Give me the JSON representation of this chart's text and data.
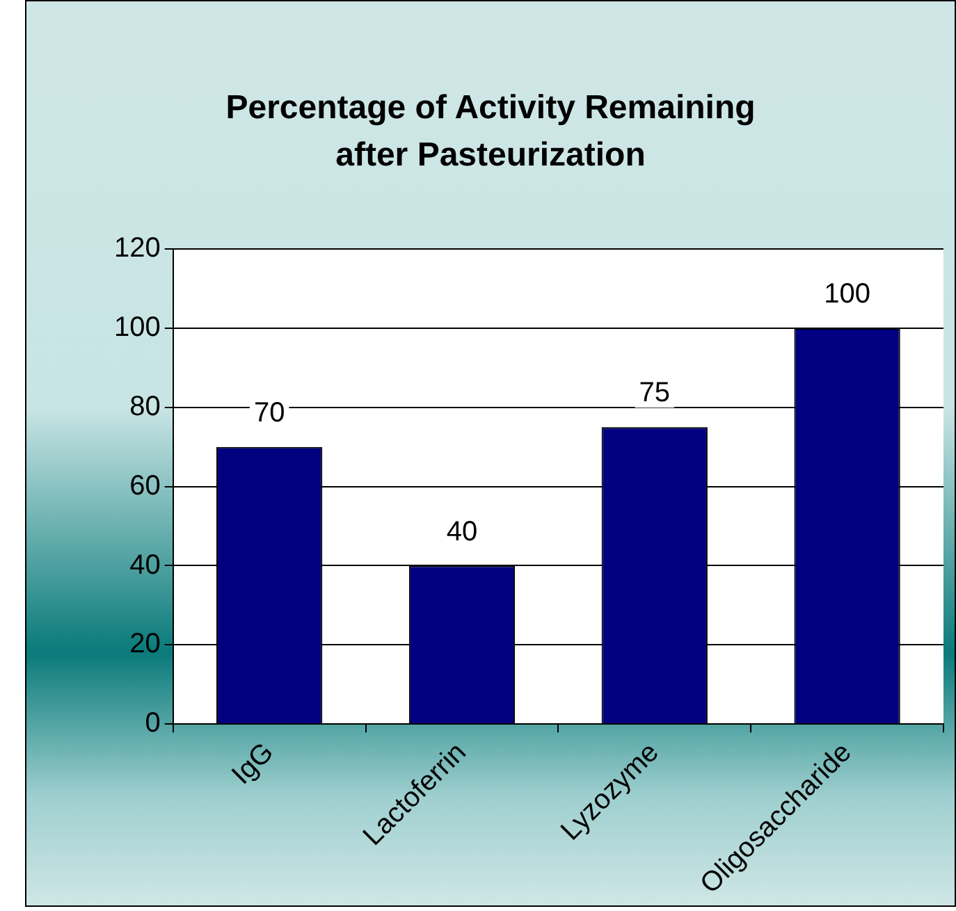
{
  "chart_data": {
    "type": "bar",
    "title": "Percentage of Activity Remaining after Pasteurization",
    "categories": [
      "IgG",
      "Lactoferrin",
      "Lyzozyme",
      "Oligosaccharide"
    ],
    "values": [
      70,
      40,
      75,
      100
    ],
    "color": "#000080",
    "ylim": [
      0,
      120
    ],
    "yticks": [
      0,
      20,
      40,
      60,
      80,
      100,
      120
    ],
    "grid": "y",
    "data_labels": true
  }
}
